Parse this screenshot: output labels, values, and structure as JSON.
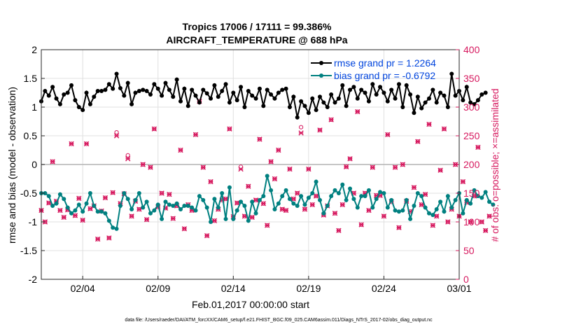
{
  "chart_data": {
    "type": "line",
    "title": "Tropics 17006 / 17111 = 99.386%",
    "subtitle": "AIRCRAFT_TEMPERATURE @ 688 hPa",
    "xlabel": "Feb.01,2017 00:00:00 start",
    "ylabel_left": "rmse and bias (model - observation)",
    "ylabel_right": "# of obs: o=possible; ×=assimilated",
    "footnote": "data file: /Users/raeder/DAI/ATM_forcXX/CAM6_setup/f.e21.FHIST_BGC.f09_025.CAM6assim.011/Diags_NTrS_2017-02/obs_diag_output.nc",
    "x_tick_labels": [
      "02/04",
      "02/09",
      "02/14",
      "02/19",
      "02/24",
      "03/01"
    ],
    "x_tick_values": [
      4,
      9,
      14,
      19,
      24,
      29
    ],
    "xlim": [
      1.25,
      29
    ],
    "ylim_left": [
      -2,
      2
    ],
    "ylim_right": [
      0,
      400
    ],
    "y_left_ticks": [
      "-2",
      "-1.5",
      "-1",
      "-0.5",
      "0",
      "0.5",
      "1",
      "1.5",
      "2"
    ],
    "y_right_ticks": [
      "0",
      "50",
      "100",
      "150",
      "200",
      "250",
      "300",
      "350",
      "400"
    ],
    "grid": true,
    "legend_position": "top-right",
    "colors": {
      "rmse": "#000000",
      "bias": "#008080",
      "obs": "#d6185e",
      "legend_text": "#0044dd",
      "zero_line": "#b3b3b3"
    },
    "series": [
      {
        "name": "rmse grand pr = 1.2264",
        "axis": "left",
        "values": [
          1.1,
          1.28,
          1.2,
          1.35,
          1.15,
          1.05,
          1.22,
          1.25,
          1.38,
          1.12,
          1.0,
          0.95,
          1.25,
          1.05,
          1.18,
          1.28,
          1.28,
          1.3,
          1.4,
          1.32,
          1.58,
          1.33,
          1.2,
          1.42,
          1.05,
          1.25,
          1.28,
          1.3,
          1.28,
          1.22,
          1.4,
          1.32,
          1.2,
          1.42,
          1.3,
          1.18,
          1.48,
          1.1,
          1.32,
          1.02,
          1.3,
          1.2,
          1.08,
          1.3,
          1.24,
          1.15,
          1.38,
          1.18,
          1.28,
          1.4,
          1.08,
          1.25,
          1.12,
          1.35,
          1.0,
          1.28,
          1.2,
          1.15,
          1.32,
          1.02,
          1.3,
          1.22,
          1.15,
          1.25,
          1.3,
          1.32,
          1.0,
          1.18,
          0.82,
          1.1,
          1.02,
          0.9,
          1.15,
          0.95,
          1.18,
          1.08,
          1.0,
          1.22,
          1.08,
          1.15,
          1.38,
          1.02,
          1.3,
          1.35,
          1.15,
          1.3,
          1.25,
          1.1,
          1.4,
          1.22,
          1.35,
          1.25,
          1.1,
          1.3,
          1.15,
          1.4,
          1.0,
          1.38,
          1.22,
          0.9,
          1.18,
          0.98,
          1.08,
          1.15,
          1.3,
          1.08,
          1.25,
          1.2,
          1.0,
          1.58,
          1.2,
          1.28,
          1.12,
          1.35,
          1.08,
          1.05,
          1.12,
          1.22,
          1.25
        ]
      },
      {
        "name": "bias grand pr = -0.6792",
        "axis": "left",
        "values": [
          -0.5,
          -0.5,
          -0.55,
          -0.72,
          -0.68,
          -0.52,
          -0.6,
          -0.75,
          -0.85,
          -0.8,
          -0.7,
          -0.82,
          -0.68,
          -0.5,
          -0.72,
          -0.82,
          -0.82,
          -0.85,
          -0.98,
          -1.1,
          -1.12,
          -0.72,
          -0.5,
          -0.6,
          -0.78,
          -0.62,
          -0.5,
          -0.75,
          -0.65,
          -0.85,
          -0.8,
          -0.7,
          -0.95,
          -0.65,
          -0.7,
          -0.72,
          -0.68,
          -0.78,
          -0.72,
          -0.72,
          -0.75,
          -0.8,
          -0.55,
          -0.62,
          -0.75,
          -1.0,
          -0.6,
          -0.75,
          -0.5,
          -0.95,
          -0.4,
          -0.95,
          -0.8,
          -0.65,
          -0.72,
          -0.98,
          -0.65,
          -0.85,
          -0.62,
          -0.55,
          -0.2,
          -0.45,
          -0.78,
          -0.68,
          -0.55,
          -0.45,
          -0.6,
          -0.68,
          -0.72,
          -0.55,
          -0.7,
          -0.58,
          -0.5,
          -0.3,
          -0.62,
          -0.85,
          -0.72,
          -0.55,
          -0.45,
          -0.5,
          -0.35,
          -0.62,
          -0.42,
          -0.6,
          -0.75,
          -0.55,
          -0.55,
          -0.45,
          -0.75,
          -0.6,
          -0.48,
          -0.5,
          -0.75,
          -0.62,
          -0.8,
          -0.82,
          -0.8,
          -0.62,
          -0.95,
          -0.72,
          -0.5,
          -0.55,
          -0.75,
          -0.85,
          -0.88,
          -0.78,
          -0.65,
          -0.82,
          -0.55,
          -0.75,
          -0.62,
          -0.5,
          -0.85,
          -0.62,
          -0.68,
          -0.45,
          -0.55,
          -0.58,
          -0.48,
          -0.65,
          -0.7
        ]
      },
      {
        "name": "obs possible",
        "axis": "right",
        "values": [
          120,
          100,
          133,
          205,
          136,
          120,
          108,
          121,
          236,
          111,
          141,
          103,
          236,
          123,
          128,
          70,
          119,
          142,
          72,
          151,
          256,
          132,
          149,
          216,
          110,
          136,
          122,
          200,
          104,
          195,
          262,
          126,
          150,
          124,
          148,
          106,
          128,
          225,
          88,
          130,
          120,
          252,
          310,
          195,
          76,
          170,
          102,
          122,
          138,
          140,
          262,
          109,
          133,
          196,
          110,
          162,
          108,
          138,
          244,
          132,
          94,
          205,
          175,
          225,
          122,
          120,
          192,
          140,
          150,
          265,
          122,
          192,
          130,
          145,
          260,
          112,
          128,
          278,
          115,
          85,
          130,
          196,
          210,
          150,
          292,
          95,
          150,
          120,
          195,
          146,
          146,
          110,
          252,
          135,
          195,
          90,
          200,
          136,
          118,
          160,
          240,
          130,
          148,
          270,
          94,
          110,
          190,
          262,
          100,
          122,
          200,
          110,
          170,
          134,
          100,
          145,
          230,
          100,
          85,
          110
        ]
      },
      {
        "name": "obs assimilated",
        "axis": "right",
        "values": [
          120,
          100,
          133,
          205,
          136,
          120,
          108,
          121,
          236,
          111,
          141,
          103,
          236,
          123,
          128,
          70,
          119,
          142,
          72,
          151,
          250,
          132,
          149,
          210,
          110,
          136,
          122,
          200,
          104,
          195,
          262,
          126,
          150,
          124,
          148,
          106,
          128,
          225,
          88,
          130,
          120,
          252,
          310,
          195,
          76,
          170,
          102,
          122,
          138,
          140,
          262,
          109,
          133,
          192,
          110,
          162,
          108,
          138,
          244,
          132,
          94,
          205,
          175,
          225,
          122,
          120,
          192,
          140,
          150,
          255,
          122,
          192,
          130,
          145,
          260,
          112,
          128,
          278,
          115,
          85,
          130,
          196,
          210,
          150,
          292,
          95,
          150,
          120,
          195,
          146,
          146,
          110,
          252,
          135,
          195,
          90,
          200,
          136,
          118,
          160,
          240,
          130,
          148,
          270,
          94,
          110,
          190,
          262,
          100,
          122,
          200,
          110,
          170,
          134,
          100,
          145,
          230,
          100,
          85,
          110
        ]
      }
    ]
  }
}
